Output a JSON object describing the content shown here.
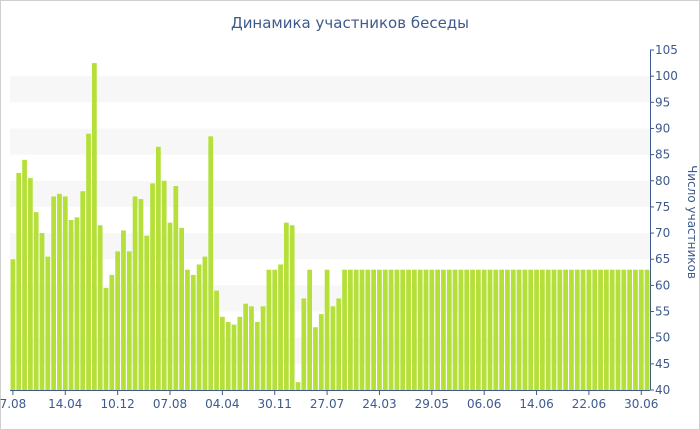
{
  "chart_data": {
    "type": "bar",
    "title": "Динамика участников беседы",
    "xlabel": "",
    "ylabel": "Число участников",
    "ylim": [
      40,
      105
    ],
    "yticks": [
      40,
      45,
      50,
      55,
      60,
      65,
      70,
      75,
      80,
      85,
      90,
      95,
      100,
      105
    ],
    "x_tick_labels": [
      "7.08",
      "14.04",
      "10.12",
      "07.08",
      "04.04",
      "30.11",
      "27.07",
      "24.03",
      "29.05",
      "06.06",
      "14.06",
      "22.06",
      "30.06"
    ],
    "x_tick_bar_index": [
      0,
      9,
      18,
      27,
      36,
      45,
      54,
      63,
      72,
      81,
      90,
      99,
      108
    ],
    "grid": "horizontal bands",
    "bar_color": "#b5e03a",
    "band_color": "#f7f7f7",
    "values": [
      65,
      81.5,
      84,
      80.5,
      74,
      70,
      65.5,
      77,
      77.5,
      77,
      72.5,
      73,
      78,
      89,
      102.5,
      71.5,
      59.5,
      62,
      66.5,
      70.5,
      66.5,
      77,
      76.5,
      69.5,
      79.5,
      86.5,
      80,
      72,
      79,
      71,
      63,
      62,
      64,
      65.5,
      88.5,
      59,
      54,
      53,
      52.5,
      54,
      56.5,
      56,
      53,
      56,
      63,
      63,
      64,
      72,
      71.5,
      41.5,
      57.5,
      63,
      52,
      54.5,
      63,
      56,
      57.5,
      63,
      63,
      63,
      63,
      63,
      63,
      63,
      63,
      63,
      63,
      63,
      63,
      63,
      63,
      63,
      63,
      63,
      63,
      63,
      63,
      63,
      63,
      63,
      63,
      63,
      63,
      63,
      63,
      63,
      63,
      63,
      63,
      63,
      63,
      63,
      63,
      63,
      63,
      63,
      63,
      63,
      63,
      63,
      63,
      63,
      63,
      63,
      63,
      63,
      63,
      63,
      63,
      63
    ]
  }
}
